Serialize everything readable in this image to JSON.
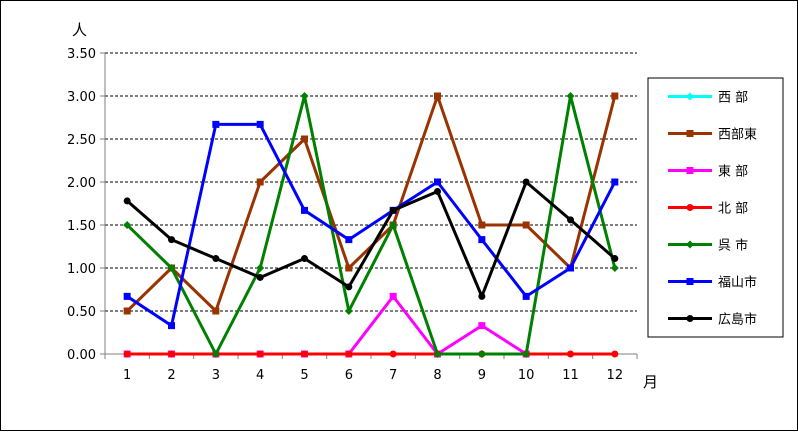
{
  "chart_data": {
    "type": "line",
    "ylabel": "人",
    "xlabel": "月",
    "ylim": [
      0,
      3.5
    ],
    "ytick_step": 0.5,
    "y_decimals": 2,
    "grid": true,
    "grid_style": "dashed-horizontal",
    "legend_position": "right",
    "categories": [
      "1",
      "2",
      "3",
      "4",
      "5",
      "6",
      "7",
      "8",
      "9",
      "10",
      "11",
      "12"
    ],
    "series": [
      {
        "name": "西 部",
        "color": "#00ffff",
        "marker": "diamond",
        "values": [
          null,
          null,
          null,
          null,
          null,
          null,
          null,
          null,
          null,
          null,
          null,
          null
        ]
      },
      {
        "name": "西部東",
        "color": "#993300",
        "marker": "square",
        "values": [
          0.5,
          1.0,
          0.5,
          2.0,
          2.5,
          1.0,
          1.5,
          3.0,
          1.5,
          1.5,
          1.0,
          3.0
        ]
      },
      {
        "name": "東 部",
        "color": "#ff00ff",
        "marker": "square",
        "values": [
          0,
          0,
          0,
          0,
          0,
          0,
          0.67,
          0,
          0.33,
          0,
          null,
          null
        ]
      },
      {
        "name": "北 部",
        "color": "#ff0000",
        "marker": "circle",
        "values": [
          0,
          0,
          0,
          0,
          0,
          0,
          0,
          0,
          0,
          0,
          0,
          0
        ]
      },
      {
        "name": "呉 市",
        "color": "#008000",
        "marker": "diamond",
        "values": [
          1.5,
          1.0,
          0,
          1.0,
          3.0,
          0.5,
          1.5,
          0,
          0,
          0,
          3.0,
          1.0
        ]
      },
      {
        "name": "福山市",
        "color": "#0000ff",
        "marker": "square",
        "values": [
          0.67,
          0.33,
          2.67,
          2.67,
          1.67,
          1.33,
          1.67,
          2.0,
          1.33,
          0.67,
          1.0,
          2.0
        ]
      },
      {
        "name": "広島市",
        "color": "#000000",
        "marker": "circle",
        "values": [
          1.78,
          1.33,
          1.11,
          0.89,
          1.11,
          0.78,
          1.67,
          1.89,
          0.67,
          2.0,
          1.56,
          1.11
        ]
      }
    ]
  }
}
